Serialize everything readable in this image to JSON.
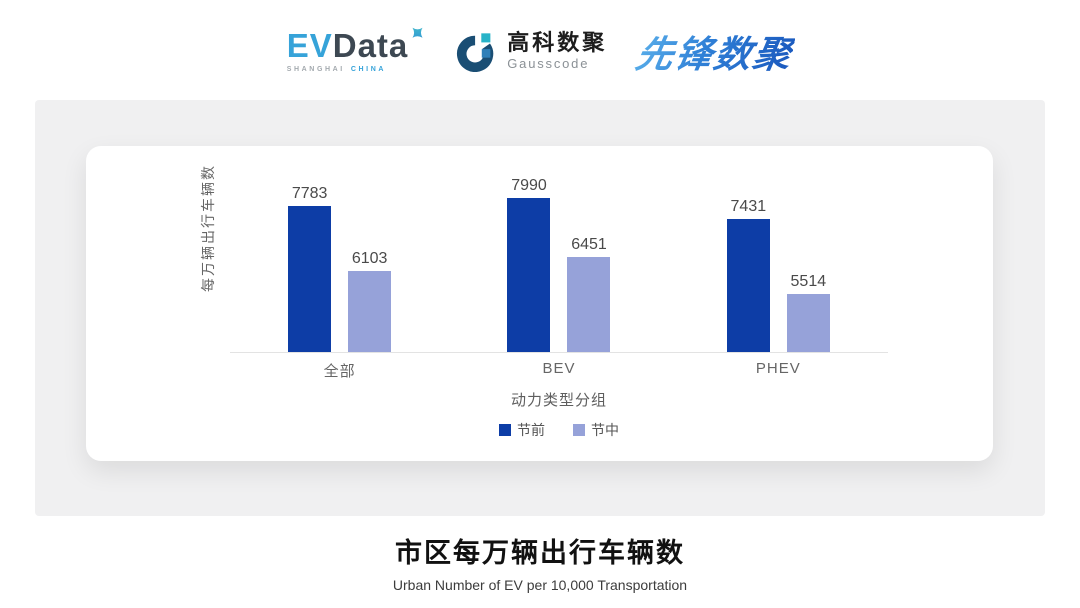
{
  "header": {
    "evdata": {
      "ev": "EV",
      "data": "Data",
      "tagline_city": "SHANGHAI",
      "tagline_country": "CHINA"
    },
    "gausscode": {
      "cn": "高科数聚",
      "en": "Gausscode"
    },
    "pioneer": {
      "text": "先锋数聚"
    }
  },
  "chart_data": {
    "type": "bar",
    "title": "市区每万辆出行车辆数",
    "subtitle": "Urban Number of EV per 10,000 Transportation",
    "xlabel": "动力类型分组",
    "ylabel": "每万辆出行车辆数",
    "categories": [
      "全部",
      "BEV",
      "PHEV"
    ],
    "series": [
      {
        "name": "节前",
        "color": "#0d3da6",
        "values": [
          7783,
          7990,
          7431
        ]
      },
      {
        "name": "节中",
        "color": "#96a2d9",
        "values": [
          6103,
          6451,
          5514
        ]
      }
    ],
    "ylim": [
      4000,
      8400
    ],
    "grid": false,
    "legend_position": "bottom",
    "value_labels": true
  },
  "colors": {
    "panel_bg": "#f0f0f1",
    "card_bg": "#ffffff",
    "axis_line": "#e3e3e3",
    "value_label": "#4a4a4a",
    "evdata_blue": "#36a3d9",
    "evdata_dark": "#3d4852",
    "pioneer_blue": "#2f7fd6"
  }
}
